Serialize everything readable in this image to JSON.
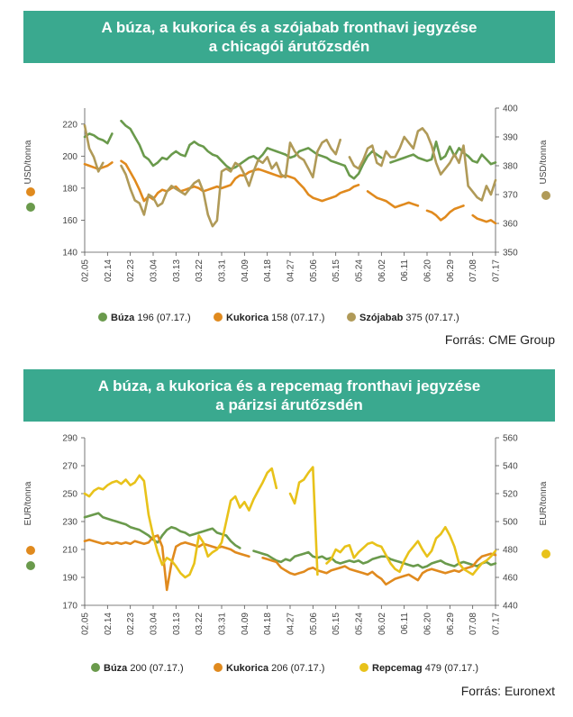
{
  "chart_data": [
    {
      "type": "line",
      "title_line1": "A búza, a kukorica és a szójabab fronthavi jegyzése",
      "title_line2": "a chicagói árutőzsdén",
      "ylabel_left": "USD/tonna",
      "ylabel_right": "USD/tonna",
      "ylim_left": [
        140,
        230
      ],
      "yticks_left": [
        140,
        160,
        180,
        200,
        220
      ],
      "ylim_right": [
        350,
        400
      ],
      "yticks_right": [
        350,
        360,
        370,
        380,
        390,
        400
      ],
      "grid": false,
      "x_tick_labels": [
        "02.05",
        "02.14",
        "02.23",
        "03.04",
        "03.13",
        "03.22",
        "03.31",
        "04.09",
        "04.18",
        "04.27",
        "05.06",
        "05.15",
        "05.24",
        "06.02",
        "06.11",
        "06.20",
        "06.29",
        "07.08",
        "07.17"
      ],
      "series": [
        {
          "name": "Búza",
          "legend_value": "196 (07.17.)",
          "axis": "left",
          "color": "#6a9a4c",
          "values": [
            212,
            214,
            213,
            211,
            210,
            208,
            214,
            null,
            222,
            219,
            217,
            212,
            207,
            200,
            198,
            194,
            196,
            199,
            198,
            201,
            203,
            201,
            200,
            207,
            209,
            207,
            206,
            203,
            201,
            200,
            197,
            194,
            192,
            193,
            195,
            197,
            199,
            200,
            198,
            201,
            205,
            204,
            203,
            202,
            201,
            199,
            200,
            203,
            204,
            205,
            203,
            201,
            200,
            199,
            197,
            196,
            195,
            194,
            188,
            186,
            189,
            195,
            200,
            203,
            201,
            199,
            null,
            196,
            197,
            198,
            199,
            200,
            201,
            199,
            198,
            197,
            198,
            209,
            198,
            200,
            206,
            200,
            205,
            202,
            200,
            197,
            196,
            201,
            198,
            195,
            196
          ]
        },
        {
          "name": "Kukorica",
          "legend_value": "158 (07.17.)",
          "axis": "left",
          "color": "#e08a1e",
          "values": [
            195,
            194,
            193,
            192,
            193,
            194,
            196,
            null,
            197,
            195,
            190,
            185,
            179,
            172,
            175,
            173,
            177,
            179,
            178,
            180,
            181,
            178,
            179,
            180,
            181,
            180,
            178,
            179,
            180,
            181,
            180,
            181,
            182,
            186,
            188,
            188,
            190,
            191,
            192,
            191,
            190,
            189,
            188,
            187,
            188,
            187,
            186,
            183,
            180,
            176,
            174,
            173,
            172,
            173,
            174,
            175,
            177,
            178,
            179,
            181,
            182,
            null,
            178,
            176,
            174,
            173,
            172,
            170,
            168,
            169,
            170,
            171,
            170,
            169,
            null,
            166,
            165,
            163,
            160,
            162,
            165,
            167,
            168,
            169,
            null,
            163,
            161,
            160,
            159,
            160,
            158
          ]
        },
        {
          "name": "Szójabab",
          "legend_value": "375 (07.17.)",
          "axis": "right",
          "color": "#b09a58",
          "values": [
            394,
            386,
            383,
            378,
            381,
            null,
            379,
            null,
            380,
            377,
            372,
            368,
            367,
            363,
            370,
            369,
            366,
            367,
            371,
            373,
            372,
            371,
            370,
            372,
            374,
            375,
            371,
            363,
            359,
            361,
            378,
            379,
            378,
            381,
            380,
            377,
            373,
            378,
            382,
            381,
            383,
            379,
            381,
            377,
            376,
            388,
            385,
            383,
            382,
            379,
            376,
            385,
            388,
            389,
            386,
            384,
            389,
            null,
            383,
            380,
            379,
            382,
            386,
            387,
            381,
            380,
            385,
            383,
            383,
            386,
            390,
            388,
            386,
            392,
            393,
            391,
            387,
            381,
            377,
            379,
            381,
            384,
            381,
            387,
            373,
            371,
            369,
            368,
            373,
            370,
            375
          ]
        }
      ]
    },
    {
      "type": "line",
      "title_line1": "A búza, a kukorica és a repcemag fronthavi jegyzése",
      "title_line2": "a párizsi árutőzsdén",
      "ylabel_left": "EUR/tonna",
      "ylabel_right": "EUR/tonna",
      "ylim_left": [
        170,
        290
      ],
      "yticks_left": [
        170,
        190,
        210,
        230,
        250,
        270,
        290
      ],
      "ylim_right": [
        440,
        560
      ],
      "yticks_right": [
        440,
        460,
        480,
        500,
        520,
        540,
        560
      ],
      "grid": false,
      "x_tick_labels": [
        "02.05",
        "02.14",
        "02.23",
        "03.04",
        "03.13",
        "03.22",
        "03.31",
        "04.09",
        "04.18",
        "04.27",
        "05.06",
        "05.15",
        "05.24",
        "06.02",
        "06.11",
        "06.20",
        "06.29",
        "07.08",
        "07.17"
      ],
      "series": [
        {
          "name": "Búza",
          "legend_value": "200 (07.17.)",
          "axis": "left",
          "color": "#6a9a4c",
          "values": [
            233,
            234,
            235,
            236,
            233,
            232,
            231,
            230,
            229,
            228,
            226,
            225,
            224,
            222,
            220,
            217,
            215,
            220,
            224,
            226,
            225,
            223,
            222,
            220,
            221,
            222,
            223,
            224,
            225,
            222,
            221,
            220,
            216,
            213,
            211,
            null,
            null,
            209,
            208,
            207,
            206,
            204,
            202,
            201,
            203,
            202,
            205,
            206,
            207,
            208,
            205,
            204,
            205,
            203,
            204,
            201,
            200,
            201,
            202,
            201,
            202,
            200,
            201,
            203,
            204,
            205,
            205,
            203,
            202,
            201,
            200,
            199,
            198,
            199,
            197,
            198,
            200,
            201,
            202,
            200,
            199,
            198,
            200,
            201,
            200,
            199,
            198,
            200,
            201,
            199,
            200
          ]
        },
        {
          "name": "Kukorica",
          "legend_value": "206 (07.17.)",
          "axis": "left",
          "color": "#e08a1e",
          "values": [
            216,
            217,
            216,
            215,
            214,
            215,
            214,
            215,
            214,
            215,
            214,
            216,
            215,
            214,
            215,
            219,
            220,
            212,
            181,
            200,
            212,
            214,
            215,
            214,
            213,
            212,
            214,
            213,
            212,
            211,
            212,
            211,
            210,
            208,
            207,
            206,
            205,
            null,
            null,
            204,
            203,
            202,
            201,
            197,
            195,
            193,
            192,
            193,
            194,
            196,
            197,
            195,
            194,
            193,
            195,
            196,
            197,
            198,
            196,
            195,
            194,
            193,
            192,
            194,
            191,
            189,
            185,
            187,
            189,
            190,
            191,
            192,
            190,
            188,
            193,
            195,
            196,
            195,
            194,
            193,
            194,
            195,
            194,
            196,
            197,
            198,
            202,
            205,
            206,
            207,
            206
          ]
        },
        {
          "name": "Repcemag",
          "legend_value": "479 (07.17.)",
          "axis": "right",
          "color": "#e8c21a",
          "values": [
            520,
            518,
            522,
            524,
            523,
            526,
            528,
            529,
            527,
            530,
            526,
            528,
            533,
            529,
            505,
            490,
            478,
            469,
            474,
            472,
            468,
            463,
            460,
            462,
            470,
            490,
            485,
            475,
            478,
            480,
            485,
            500,
            515,
            518,
            510,
            514,
            508,
            516,
            522,
            528,
            535,
            538,
            524,
            null,
            null,
            520,
            513,
            528,
            530,
            535,
            539,
            462,
            null,
            470,
            473,
            480,
            478,
            482,
            483,
            474,
            478,
            481,
            484,
            485,
            483,
            482,
            476,
            470,
            466,
            464,
            472,
            478,
            482,
            486,
            480,
            475,
            479,
            488,
            491,
            496,
            490,
            482,
            470,
            466,
            464,
            462,
            466,
            470,
            472,
            475,
            479
          ]
        }
      ]
    }
  ],
  "source1": "Forrás: CME Group",
  "source2": "Forrás: Euronext"
}
